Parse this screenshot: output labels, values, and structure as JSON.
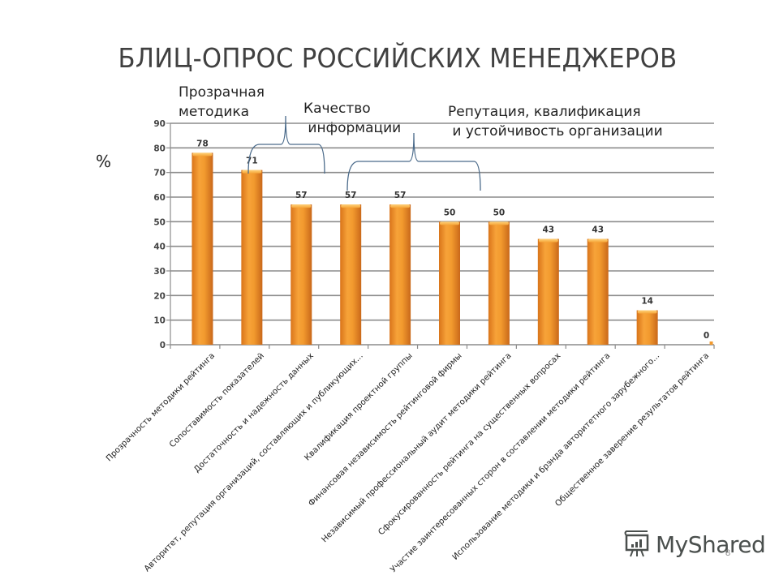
{
  "slide": {
    "title": "БЛИЦ-ОПРОС РОССИЙСКИХ МЕНЕДЖЕРОВ",
    "y_unit_label": "%",
    "annotations": [
      {
        "text": "Прозрачная\nметодика",
        "group": "bars 1"
      },
      {
        "text": "Качество\n информации",
        "group": "bars 2-3"
      },
      {
        "text": "Репутация, квалификация\n и устойчивость организации",
        "group": "bars 4-6"
      }
    ],
    "watermark": "MyShared",
    "slide_number": "8",
    "colors": {
      "bar": "#F29A2E",
      "bar_dark": "#D9741A",
      "bar_light": "#FFC15A",
      "grid": "#8c8c8c",
      "brace": "#4a6a8a",
      "text": "#333333"
    }
  },
  "chart_data": {
    "type": "bar",
    "title": "БЛИЦ-ОПРОС РОССИЙСКИХ МЕНЕДЖЕРОВ",
    "xlabel": "",
    "ylabel": "%",
    "ylim": [
      0,
      90
    ],
    "yticks": [
      0,
      10,
      20,
      30,
      40,
      50,
      60,
      70,
      80,
      90
    ],
    "grid": true,
    "legend": null,
    "categories": [
      "Прозрачность методики рейтинга",
      "Сопоставимость показателей",
      "Достаточность и надежность данных",
      "Авторитет, репутация организаций, составляющих и публикующих...",
      "Квалификация проектной группы",
      "Финансовая независимость рейтинговой фирмы",
      "Независимый профессиональный аудит методики рейтинга",
      "Сфокусированность рейтинга на существенных вопросах",
      "Участие заинтересованных сторон в составлении методики рейтинга",
      "Использование методики и брэнда авторитетного зарубежного...",
      "Общественное заверение результатов рейтинга"
    ],
    "values": [
      78,
      71,
      57,
      57,
      57,
      50,
      50,
      43,
      43,
      14,
      0
    ],
    "data_labels": [
      "78",
      "71",
      "57",
      "57",
      "57",
      "50",
      "50",
      "43",
      "43",
      "14",
      "0"
    ],
    "annotations": [
      {
        "text": "Прозрачная методика",
        "covers": [
          0
        ]
      },
      {
        "text": "Качество информации",
        "covers": [
          1,
          2
        ]
      },
      {
        "text": "Репутация, квалификация и устойчивость организации",
        "covers": [
          3,
          4,
          5
        ]
      }
    ]
  }
}
